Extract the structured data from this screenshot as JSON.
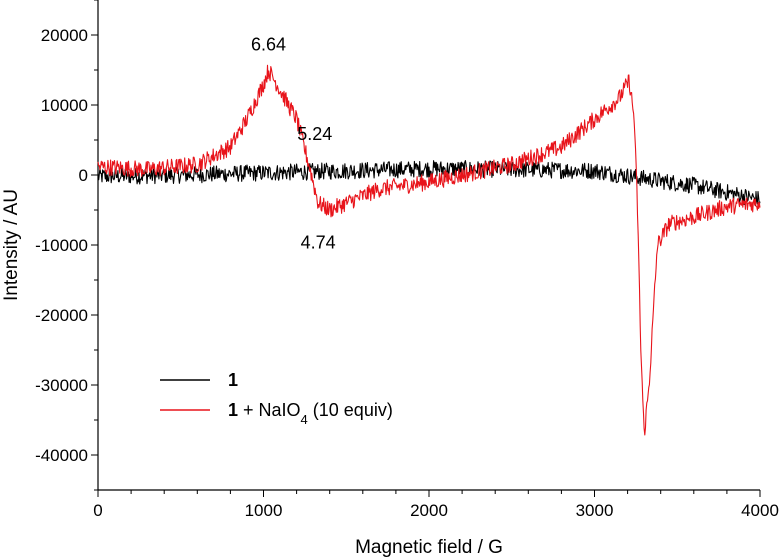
{
  "chart_data": {
    "type": "line",
    "xlabel": "Magnetic field / G",
    "ylabel": "Intensity / AU",
    "xlim": [
      0,
      4000
    ],
    "ylim": [
      -45000,
      25000
    ],
    "x_ticks": [
      0,
      1000,
      2000,
      3000,
      4000
    ],
    "x_tick_labels": [
      "0",
      "1000",
      "2000",
      "3000",
      "4000"
    ],
    "y_ticks": [
      -40000,
      -30000,
      -20000,
      -10000,
      0,
      10000,
      20000
    ],
    "y_tick_labels": [
      "-40000",
      "-30000",
      "-20000",
      "-10000",
      "0",
      "10000",
      "20000"
    ],
    "grid": false,
    "legend_position": "lower-left",
    "series": [
      {
        "name_bold": "1",
        "name_rest": "",
        "color": "#000000",
        "noise": 1200,
        "points": [
          [
            0,
            -200
          ],
          [
            500,
            0
          ],
          [
            1000,
            300
          ],
          [
            1500,
            600
          ],
          [
            2000,
            900
          ],
          [
            2500,
            800
          ],
          [
            3000,
            600
          ],
          [
            3300,
            -500
          ],
          [
            3600,
            -1500
          ],
          [
            4000,
            -3500
          ]
        ]
      },
      {
        "name_bold": "1",
        "name_rest": " + NaIO",
        "name_sub": "4",
        "name_tail": " (10 equiv)",
        "color": "#e8141b",
        "noise": 1200,
        "points": [
          [
            0,
            1200
          ],
          [
            300,
            800
          ],
          [
            600,
            1500
          ],
          [
            800,
            4000
          ],
          [
            900,
            8000
          ],
          [
            1000,
            13000
          ],
          [
            1030,
            15000
          ],
          [
            1080,
            13000
          ],
          [
            1150,
            10000
          ],
          [
            1200,
            8000
          ],
          [
            1280,
            1000
          ],
          [
            1330,
            -4000
          ],
          [
            1400,
            -5000
          ],
          [
            1500,
            -4000
          ],
          [
            1700,
            -2000
          ],
          [
            2000,
            -1000
          ],
          [
            2500,
            1500
          ],
          [
            2800,
            4000
          ],
          [
            3000,
            8000
          ],
          [
            3150,
            11000
          ],
          [
            3210,
            13500
          ],
          [
            3240,
            8000
          ],
          [
            3260,
            -5000
          ],
          [
            3280,
            -25000
          ],
          [
            3300,
            -37000
          ],
          [
            3330,
            -30000
          ],
          [
            3380,
            -10000
          ],
          [
            3450,
            -7000
          ],
          [
            3600,
            -6000
          ],
          [
            3800,
            -4500
          ],
          [
            4000,
            -4000
          ]
        ]
      }
    ],
    "annotations": [
      {
        "text": "6.64",
        "x": 1030,
        "y": 17800
      },
      {
        "text": "5.24",
        "x": 1310,
        "y": 5000
      },
      {
        "text": "4.74",
        "x": 1330,
        "y": -10500
      }
    ]
  }
}
